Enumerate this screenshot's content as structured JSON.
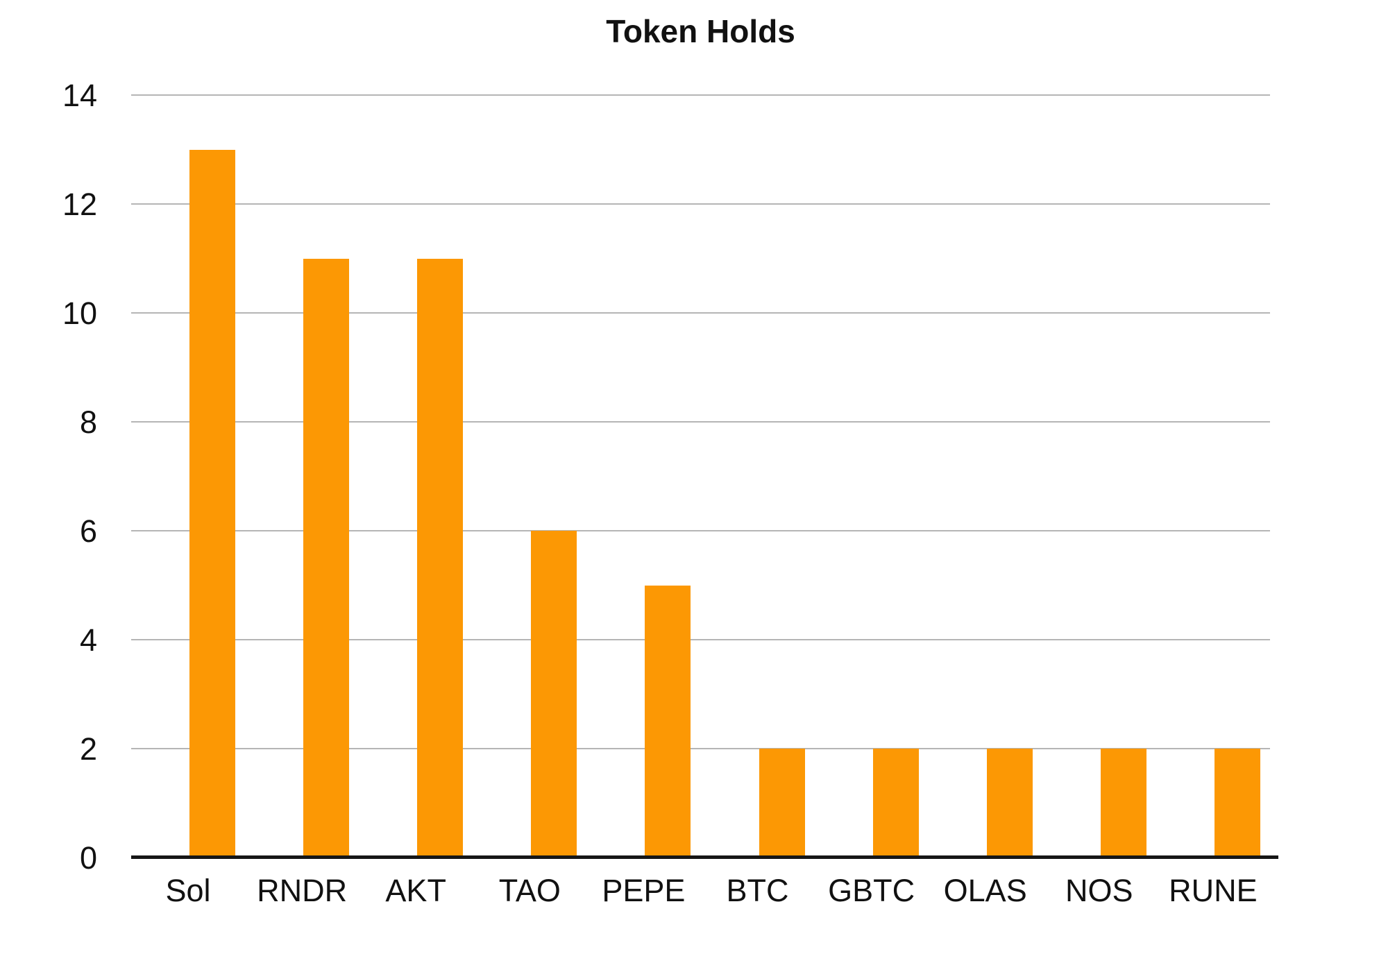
{
  "title": "Token Holds",
  "colors": {
    "bar": "#FC9804",
    "grid": "#b5b5b5",
    "axis": "#161616",
    "text": "#111111",
    "background": "#ffffff"
  },
  "chart_data": {
    "type": "bar",
    "title": "Token Holds",
    "categories": [
      "Sol",
      "RNDR",
      "AKT",
      "TAO",
      "PEPE",
      "BTC",
      "GBTC",
      "OLAS",
      "NOS",
      "RUNE"
    ],
    "values": [
      13,
      11,
      11,
      6,
      5,
      2,
      2,
      2,
      2,
      2
    ],
    "xlabel": "",
    "ylabel": "",
    "ylim": [
      0,
      14
    ],
    "ytick_step": 2,
    "yticks": [
      0,
      2,
      4,
      6,
      8,
      10,
      12,
      14
    ],
    "grid": true,
    "legend": "none"
  }
}
